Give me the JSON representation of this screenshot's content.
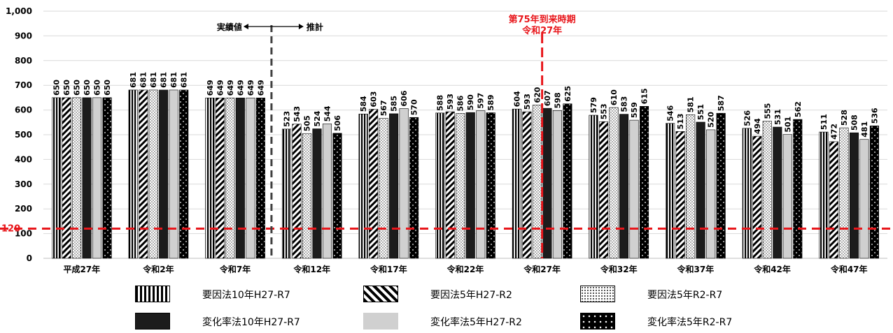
{
  "chart_data": {
    "type": "bar",
    "categories": [
      "平成27年",
      "令和2年",
      "令和7年",
      "令和12年",
      "令和17年",
      "令和22年",
      "令和27年",
      "令和32年",
      "令和37年",
      "令和42年",
      "令和47年"
    ],
    "series": [
      {
        "name": "要因法10年H27-R7",
        "values": [
          650,
          681,
          649,
          523,
          584,
          588,
          604,
          579,
          546,
          526,
          511
        ]
      },
      {
        "name": "要因法5年H27-R2",
        "values": [
          650,
          681,
          649,
          543,
          603,
          593,
          593,
          553,
          513,
          494,
          472
        ]
      },
      {
        "name": "要因法5年R2-R7",
        "values": [
          650,
          681,
          649,
          505,
          567,
          586,
          620,
          610,
          581,
          555,
          528
        ]
      },
      {
        "name": "変化率法10年H27-R7",
        "values": [
          650,
          681,
          649,
          524,
          585,
          590,
          607,
          583,
          551,
          531,
          508
        ]
      },
      {
        "name": "変化率法5年H27-R2",
        "values": [
          650,
          681,
          649,
          544,
          606,
          597,
          598,
          559,
          520,
          501,
          481
        ]
      },
      {
        "name": "変化率法5年R2-R7",
        "values": [
          650,
          681,
          649,
          506,
          570,
          589,
          625,
          615,
          587,
          562,
          536
        ]
      }
    ],
    "ylim": [
      0,
      1000
    ],
    "yticks": [
      "0",
      "100",
      "200",
      "300",
      "400",
      "500",
      "600",
      "700",
      "800",
      "900",
      "1,000"
    ],
    "reference_line": {
      "value": 120,
      "label": "120",
      "color": "#e8161b"
    },
    "vertical_markers": [
      {
        "after_category": "令和7年",
        "left_label": "実績値",
        "right_label": "推計",
        "color": "#404040"
      },
      {
        "at_category": "令和27年",
        "label_line1": "第75年到来時期",
        "label_line2": "令和27年",
        "color": "#e8161b"
      }
    ],
    "grid": true,
    "legend_position": "bottom"
  }
}
